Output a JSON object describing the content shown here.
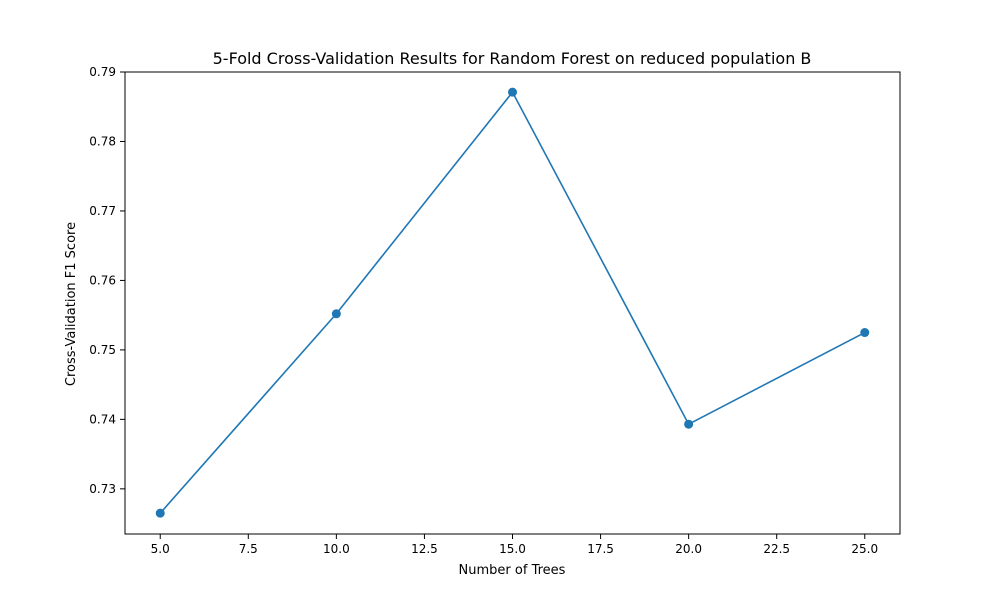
{
  "chart_data": {
    "type": "line",
    "title": "5-Fold Cross-Validation Results for Random Forest on reduced population B",
    "xlabel": "Number of Trees",
    "ylabel": "Cross-Validation F1 Score",
    "xlim": [
      4.0,
      26.0
    ],
    "ylim": [
      0.7235,
      0.79
    ],
    "xticks": [
      5.0,
      7.5,
      10.0,
      12.5,
      15.0,
      17.5,
      20.0,
      22.5,
      25.0
    ],
    "xtick_labels": [
      "5.0",
      "7.5",
      "10.0",
      "12.5",
      "15.0",
      "17.5",
      "20.0",
      "22.5",
      "25.0"
    ],
    "yticks": [
      0.73,
      0.74,
      0.75,
      0.76,
      0.77,
      0.78,
      0.79
    ],
    "ytick_labels": [
      "0.73",
      "0.74",
      "0.75",
      "0.76",
      "0.77",
      "0.78",
      "0.79"
    ],
    "grid": false,
    "legend": false,
    "line_color": "#1f77b4",
    "series": [
      {
        "x": [
          5,
          10,
          15,
          20,
          25
        ],
        "values": [
          0.7265,
          0.7552,
          0.7871,
          0.7393,
          0.7525
        ],
        "marker": "circle"
      }
    ]
  }
}
